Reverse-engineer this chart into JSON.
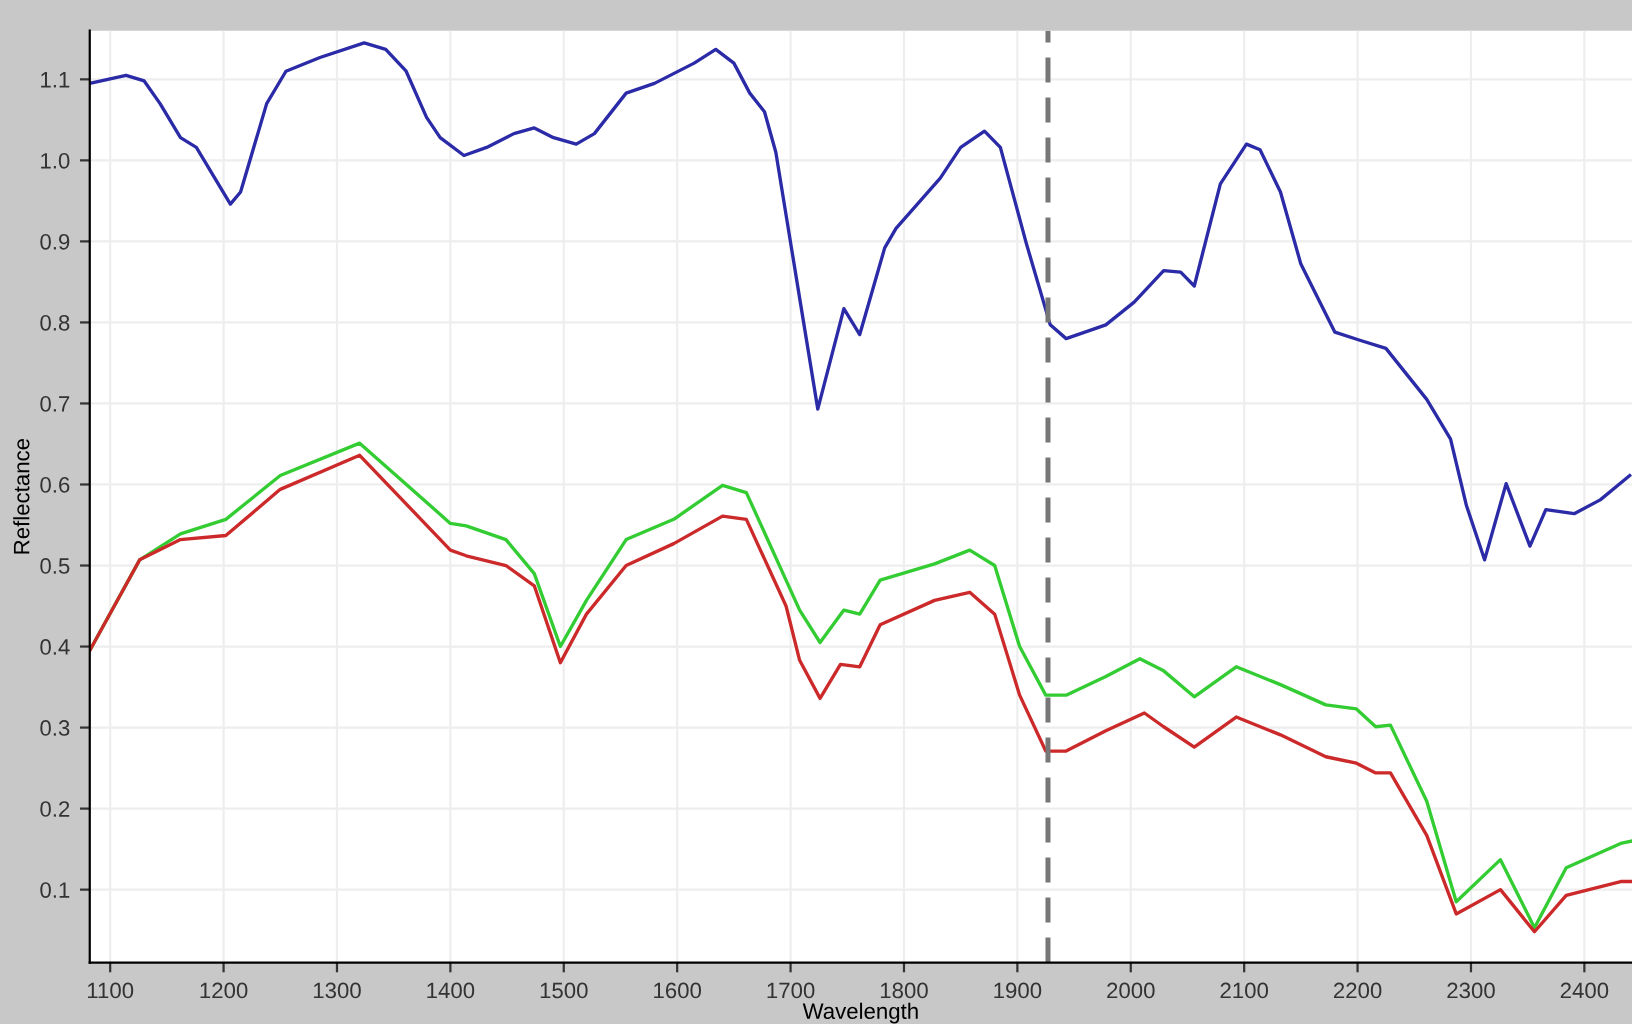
{
  "chart_data": {
    "type": "line",
    "xlabel": "Wavelength",
    "ylabel": "Reflectance",
    "xlim": [
      1082,
      2442
    ],
    "ylim": [
      0.01,
      1.16
    ],
    "xticks": [
      1100,
      1200,
      1300,
      1400,
      1500,
      1600,
      1700,
      1800,
      1900,
      2000,
      2100,
      2200,
      2300,
      2400
    ],
    "yticks": [
      0.1,
      0.2,
      0.3,
      0.4,
      0.5,
      0.6,
      0.7,
      0.8,
      0.9,
      {
        "value": 1.0,
        "label": "1.0"
      },
      1.1
    ],
    "grid": true,
    "legend": false,
    "marker": "none",
    "line_style": "solid",
    "ref_lines": [
      {
        "axis": "x",
        "value": 1927,
        "color": "#777777",
        "line_style": "dashed"
      }
    ],
    "series": [
      {
        "color": "#2b2ba8",
        "x": [
          1082,
          1114,
          1130,
          1144,
          1162,
          1176,
          1206,
          1215,
          1238,
          1255,
          1285,
          1324,
          1343,
          1361,
          1379,
          1391,
          1412,
          1432,
          1456,
          1474,
          1491,
          1511,
          1527,
          1555,
          1580,
          1615,
          1634,
          1650,
          1664,
          1677,
          1687,
          1708,
          1724,
          1747,
          1761,
          1783,
          1793,
          1832,
          1850,
          1871,
          1885,
          1908,
          1929,
          1943,
          1978,
          2003,
          2029,
          2044,
          2056,
          2079,
          2102,
          2114,
          2132,
          2150,
          2180,
          2202,
          2225,
          2261,
          2282,
          2296,
          2312,
          2331,
          2352,
          2366,
          2391,
          2414,
          2440
        ],
        "values": [
          1.095,
          1.105,
          1.098,
          1.07,
          1.028,
          1.016,
          0.946,
          0.961,
          1.07,
          1.11,
          1.127,
          1.145,
          1.137,
          1.11,
          1.053,
          1.028,
          1.006,
          1.016,
          1.033,
          1.04,
          1.028,
          1.02,
          1.033,
          1.083,
          1.095,
          1.12,
          1.137,
          1.12,
          1.083,
          1.06,
          1.01,
          0.83,
          0.693,
          0.817,
          0.785,
          0.892,
          0.916,
          0.978,
          1.016,
          1.036,
          1.016,
          0.897,
          0.797,
          0.78,
          0.797,
          0.825,
          0.864,
          0.862,
          0.845,
          0.971,
          1.02,
          1.013,
          0.961,
          0.872,
          0.788,
          0.778,
          0.768,
          0.705,
          0.656,
          0.574,
          0.507,
          0.601,
          0.524,
          0.569,
          0.564,
          0.581,
          0.611
        ]
      },
      {
        "color": "#33cc33",
        "x": [
          1082,
          1126,
          1162,
          1202,
          1250,
          1320,
          1400,
          1414,
          1449,
          1474,
          1497,
          1520,
          1555,
          1597,
          1640,
          1661,
          1696,
          1708,
          1726,
          1747,
          1761,
          1779,
          1827,
          1858,
          1880,
          1902,
          1925,
          1943,
          1978,
          2008,
          2029,
          2056,
          2093,
          2132,
          2172,
          2199,
          2216,
          2229,
          2261,
          2287,
          2326,
          2356,
          2384,
          2432,
          2442
        ],
        "values": [
          0.395,
          0.507,
          0.539,
          0.557,
          0.611,
          0.651,
          0.552,
          0.549,
          0.532,
          0.49,
          0.4,
          0.457,
          0.532,
          0.557,
          0.599,
          0.59,
          0.482,
          0.445,
          0.405,
          0.445,
          0.44,
          0.482,
          0.502,
          0.519,
          0.5,
          0.4,
          0.34,
          0.34,
          0.363,
          0.385,
          0.37,
          0.338,
          0.375,
          0.353,
          0.328,
          0.323,
          0.301,
          0.303,
          0.209,
          0.085,
          0.137,
          0.053,
          0.127,
          0.157,
          0.16
        ]
      },
      {
        "color": "#cc2a2a",
        "x": [
          1082,
          1126,
          1162,
          1202,
          1250,
          1320,
          1400,
          1414,
          1449,
          1474,
          1497,
          1520,
          1555,
          1597,
          1640,
          1661,
          1696,
          1708,
          1726,
          1744,
          1761,
          1779,
          1827,
          1858,
          1880,
          1902,
          1925,
          1943,
          1978,
          2012,
          2029,
          2056,
          2093,
          2132,
          2172,
          2199,
          2216,
          2229,
          2261,
          2287,
          2326,
          2356,
          2384,
          2432,
          2442
        ],
        "values": [
          0.395,
          0.507,
          0.532,
          0.537,
          0.594,
          0.636,
          0.519,
          0.512,
          0.5,
          0.475,
          0.38,
          0.44,
          0.5,
          0.527,
          0.561,
          0.557,
          0.45,
          0.383,
          0.336,
          0.378,
          0.375,
          0.427,
          0.457,
          0.467,
          0.44,
          0.34,
          0.271,
          0.271,
          0.296,
          0.318,
          0.301,
          0.276,
          0.313,
          0.291,
          0.264,
          0.256,
          0.244,
          0.244,
          0.167,
          0.07,
          0.1,
          0.048,
          0.093,
          0.11,
          0.11
        ]
      }
    ]
  }
}
